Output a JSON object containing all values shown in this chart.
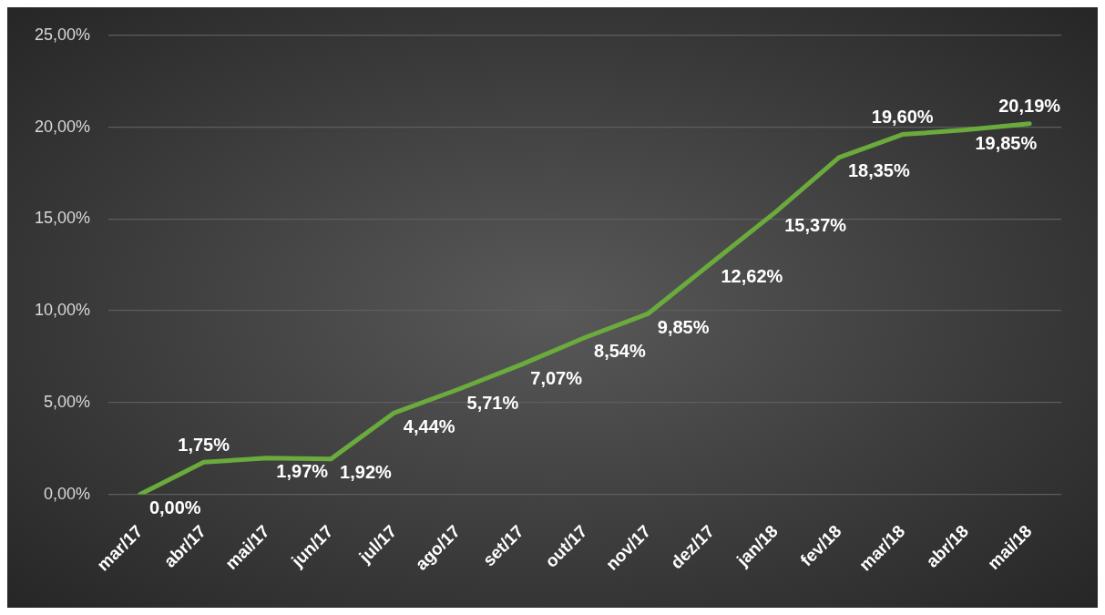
{
  "chart_data": {
    "type": "line",
    "categories": [
      "mar/17",
      "abr/17",
      "mai/17",
      "jun/17",
      "jul/17",
      "ago/17",
      "set/17",
      "out/17",
      "nov/17",
      "dez/17",
      "jan/18",
      "fev/18",
      "mar/18",
      "abr/18",
      "mai/18"
    ],
    "series": [
      {
        "color": "#6aab3c",
        "values": [
          0.0,
          1.75,
          1.97,
          1.92,
          4.44,
          5.71,
          7.07,
          8.54,
          9.85,
          12.62,
          15.37,
          18.35,
          19.6,
          19.85,
          20.19
        ],
        "value_labels": [
          "0,00%",
          "1,75%",
          "1,97%",
          "1,92%",
          "4,44%",
          "5,71%",
          "7,07%",
          "8,54%",
          "9,85%",
          "12,62%",
          "15,37%",
          "18,35%",
          "19,60%",
          "19,85%",
          "20,19%"
        ]
      }
    ],
    "ylim": [
      0,
      25
    ],
    "yticks": [
      {
        "value": 0,
        "label": "0,00%"
      },
      {
        "value": 5,
        "label": "5,00%"
      },
      {
        "value": 10,
        "label": "10,00%"
      },
      {
        "value": 15,
        "label": "15,00%"
      },
      {
        "value": 20,
        "label": "20,00%"
      },
      {
        "value": 25,
        "label": "25,00%"
      }
    ],
    "grid": "y",
    "legend": false,
    "marker": "none",
    "line_style": "solid"
  }
}
